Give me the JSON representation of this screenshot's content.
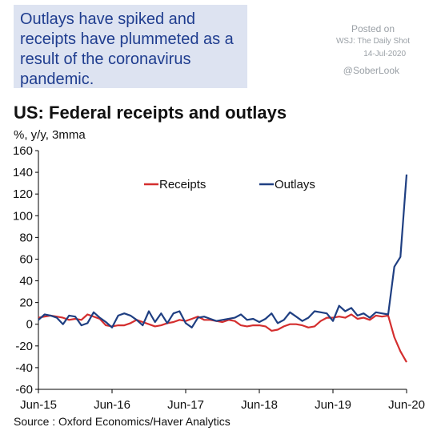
{
  "callout": {
    "text": "Outlays have spiked and receipts have plummeted as a result of the coronavirus pandemic."
  },
  "posted": {
    "label": "Posted on",
    "source": "WSJ: The Daily Shot",
    "date": "14-Jul-2020",
    "handle": "@SoberLook"
  },
  "chart_data": {
    "type": "line",
    "title": "US: Federal receipts and outlays",
    "unit_label": "%, y/y, 3mma",
    "source": "Source : Oxford Economics/Haver Analytics",
    "ylim": [
      -60,
      160
    ],
    "yticks": [
      160,
      140,
      120,
      100,
      80,
      60,
      40,
      20,
      0,
      -20,
      -40,
      -60
    ],
    "xtick_labels": [
      "Jun-15",
      "Jun-16",
      "Jun-17",
      "Jun-18",
      "Jun-19",
      "Jun-20"
    ],
    "xtick_index": [
      0,
      12,
      24,
      36,
      48,
      60
    ],
    "legend_position": "top-center",
    "grid": false,
    "x": [
      "2015-06",
      "2015-07",
      "2015-08",
      "2015-09",
      "2015-10",
      "2015-11",
      "2015-12",
      "2016-01",
      "2016-02",
      "2016-03",
      "2016-04",
      "2016-05",
      "2016-06",
      "2016-07",
      "2016-08",
      "2016-09",
      "2016-10",
      "2016-11",
      "2016-12",
      "2017-01",
      "2017-02",
      "2017-03",
      "2017-04",
      "2017-05",
      "2017-06",
      "2017-07",
      "2017-08",
      "2017-09",
      "2017-10",
      "2017-11",
      "2017-12",
      "2018-01",
      "2018-02",
      "2018-03",
      "2018-04",
      "2018-05",
      "2018-06",
      "2018-07",
      "2018-08",
      "2018-09",
      "2018-10",
      "2018-11",
      "2018-12",
      "2019-01",
      "2019-02",
      "2019-03",
      "2019-04",
      "2019-05",
      "2019-06",
      "2019-07",
      "2019-08",
      "2019-09",
      "2019-10",
      "2019-11",
      "2019-12",
      "2020-01",
      "2020-02",
      "2020-03",
      "2020-04",
      "2020-05",
      "2020-06"
    ],
    "series": [
      {
        "name": "Receipts",
        "color": "#d42e2e",
        "values": [
          6,
          7,
          8,
          7,
          6,
          4,
          5,
          4,
          9,
          7,
          5,
          -1,
          -2,
          -1,
          -1,
          1,
          4,
          2,
          0,
          -2,
          -1,
          1,
          2,
          4,
          3,
          5,
          7,
          4,
          4,
          3,
          2,
          4,
          3,
          -1,
          -2,
          -1,
          -1,
          -2,
          -6,
          -5,
          -2,
          0,
          0,
          -1,
          -3,
          -2,
          3,
          6,
          6,
          7,
          6,
          9,
          5,
          6,
          4,
          8,
          7,
          8,
          -12,
          -25,
          -35
        ]
      },
      {
        "name": "Outlays",
        "color": "#1f3f82",
        "values": [
          4,
          9,
          8,
          6,
          0,
          8,
          7,
          -1,
          1,
          11,
          6,
          2,
          -3,
          8,
          10,
          8,
          4,
          -1,
          12,
          2,
          10,
          1,
          10,
          12,
          1,
          -3,
          6,
          7,
          5,
          3,
          4,
          5,
          6,
          9,
          4,
          5,
          2,
          5,
          10,
          1,
          4,
          11,
          7,
          3,
          6,
          12,
          11,
          10,
          3,
          17,
          12,
          15,
          8,
          10,
          6,
          11,
          10,
          9,
          53,
          62,
          138
        ]
      }
    ]
  }
}
